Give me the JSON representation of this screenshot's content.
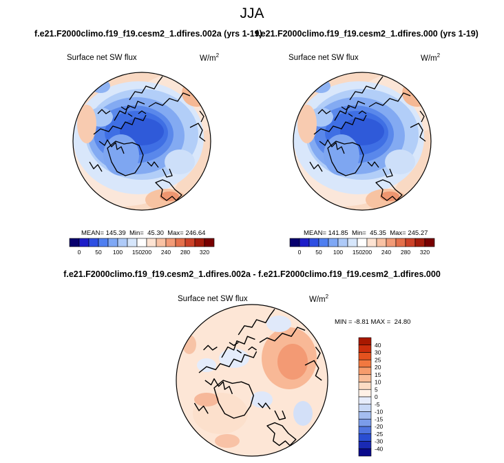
{
  "title": "JJA",
  "panels": [
    {
      "case": "f.e21.F2000climo.f19_f19.cesm2_1.dfires.002a (yrs 1-19)",
      "variable": "Surface net SW flux",
      "units_base": "W/m",
      "units_exp": "2",
      "stats": {
        "mean_label": "MEAN=",
        "mean": "145.39",
        "min_label": "Min=",
        "min": "45.30",
        "max_label": "Max=",
        "max": "246.64"
      }
    },
    {
      "case": "f.e21.F2000climo.f19_f19.cesm2_1.dfires.000 (yrs 1-19)",
      "variable": "Surface net SW flux",
      "units_base": "W/m",
      "units_exp": "2",
      "stats": {
        "mean_label": "MEAN=",
        "mean": "141.85",
        "min_label": "Min=",
        "min": "45.35",
        "max_label": "Max=",
        "max": "245.27"
      }
    }
  ],
  "difference": {
    "case": "f.e21.F2000climo.f19_f19.cesm2_1.dfires.002a - f.e21.F2000climo.f19_f19.cesm2_1.dfires.000",
    "variable": "Surface net SW flux",
    "units_base": "W/m",
    "units_exp": "2",
    "stats": {
      "min_label": "MIN =",
      "min": "-8.81",
      "max_label": "MAX =",
      "max": "24.80"
    }
  },
  "chart_data": [
    {
      "type": "heatmap",
      "projection": "north-polar-stereographic",
      "title": "Surface net SW flux",
      "units": "W/m2",
      "colorbar": {
        "orientation": "horizontal",
        "levels": [
          0,
          50,
          100,
          150,
          200,
          240,
          280,
          320
        ],
        "colors": [
          "#08006e",
          "#1d1dc8",
          "#2e4fe2",
          "#4f7ff0",
          "#7fa8f5",
          "#aecaf8",
          "#d6e6fb",
          "#ffffff",
          "#fde3d2",
          "#f9c2a4",
          "#f29b77",
          "#e4704b",
          "#cc4228",
          "#a41c0c",
          "#780000"
        ]
      },
      "stats": {
        "mean": 145.39,
        "min": 45.3,
        "max": 246.64
      }
    },
    {
      "type": "heatmap",
      "projection": "north-polar-stereographic",
      "title": "Surface net SW flux",
      "units": "W/m2",
      "colorbar": {
        "orientation": "horizontal",
        "levels": [
          0,
          50,
          100,
          150,
          200,
          240,
          280,
          320
        ],
        "colors": [
          "#08006e",
          "#1d1dc8",
          "#2e4fe2",
          "#4f7ff0",
          "#7fa8f5",
          "#aecaf8",
          "#d6e6fb",
          "#ffffff",
          "#fde3d2",
          "#f9c2a4",
          "#f29b77",
          "#e4704b",
          "#cc4228",
          "#a41c0c",
          "#780000"
        ]
      },
      "stats": {
        "mean": 141.85,
        "min": 45.35,
        "max": 245.27
      }
    },
    {
      "type": "heatmap",
      "projection": "north-polar-stereographic",
      "title": "Surface net SW flux",
      "units": "W/m2",
      "colorbar": {
        "orientation": "vertical",
        "levels": [
          40,
          30,
          25,
          20,
          15,
          10,
          5,
          0,
          -5,
          -10,
          -15,
          -20,
          -25,
          -30,
          -40
        ],
        "colors": [
          "#a81800",
          "#cc2e0c",
          "#e4521e",
          "#f17840",
          "#f69c6c",
          "#f9bd98",
          "#fcdcc4",
          "#fff1e6",
          "#e6ecfb",
          "#c8d8f6",
          "#a4bdf0",
          "#7b9cea",
          "#4f74e0",
          "#2a4ed2",
          "#1a2ab4",
          "#0a0a8c"
        ]
      },
      "stats": {
        "min": -8.81,
        "max": 24.8
      }
    }
  ]
}
